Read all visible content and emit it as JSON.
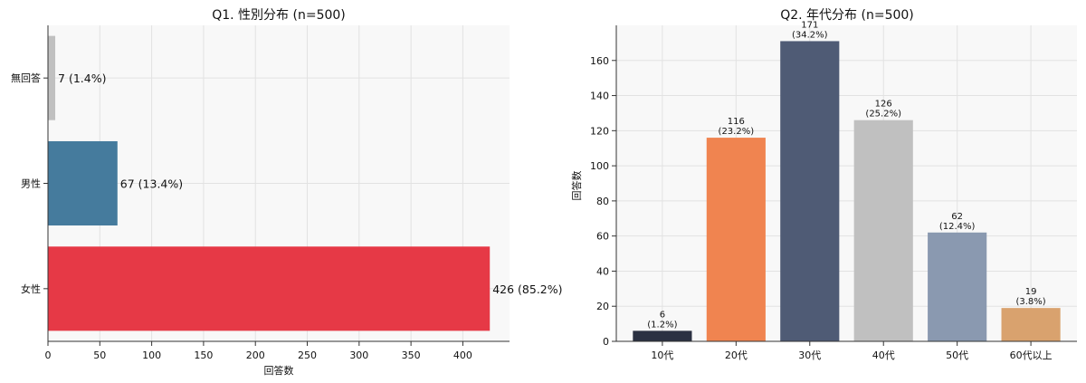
{
  "chart_data": [
    {
      "type": "bar",
      "orientation": "horizontal",
      "title": "Q1. 性別分布 (n=500)",
      "xlabel": "回答数",
      "ylabel": "",
      "categories": [
        "女性",
        "男性",
        "無回答"
      ],
      "values": [
        426,
        67,
        7
      ],
      "data_labels": [
        "426 (85.2%)",
        "67 (13.4%)",
        "7 (1.4%)"
      ],
      "colors": [
        "#e63946",
        "#457b9d",
        "#c0c0c0"
      ],
      "xlim": [
        0,
        445
      ],
      "xticks": [
        0,
        50,
        100,
        150,
        200,
        250,
        300,
        350,
        400
      ],
      "grid": true
    },
    {
      "type": "bar",
      "orientation": "vertical",
      "title": "Q2. 年代分布 (n=500)",
      "xlabel": "",
      "ylabel": "回答数",
      "categories": [
        "10代",
        "20代",
        "30代",
        "40代",
        "50代",
        "60代以上"
      ],
      "values": [
        6,
        116,
        171,
        126,
        62,
        19
      ],
      "data_labels": [
        "6\n(1.2%)",
        "116\n(23.2%)",
        "171\n(34.2%)",
        "126\n(25.2%)",
        "62\n(12.4%)",
        "19\n(3.8%)"
      ],
      "colors": [
        "#2b3142",
        "#f08450",
        "#4f5b75",
        "#c0c0c0",
        "#8a99b0",
        "#d9a26e"
      ],
      "ylim": [
        0,
        180
      ],
      "yticks": [
        0,
        20,
        40,
        60,
        80,
        100,
        120,
        140,
        160
      ],
      "grid": true
    }
  ]
}
